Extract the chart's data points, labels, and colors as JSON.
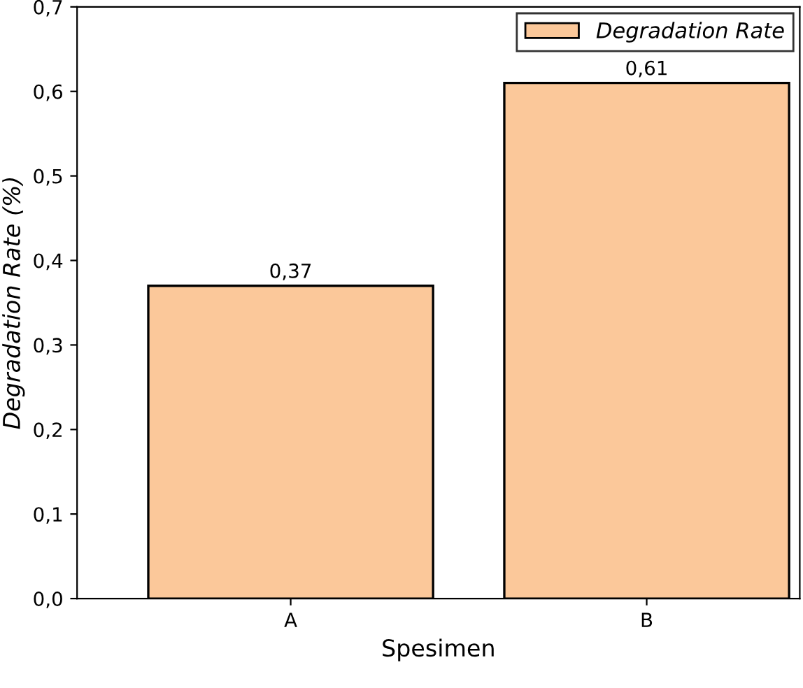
{
  "chart_data": {
    "type": "bar",
    "xlabel": "Spesimen",
    "ylabel": "Degradation Rate (%)",
    "categories": [
      "A",
      "B"
    ],
    "series": [
      {
        "name": "Degradation Rate",
        "color": "#fbc89a",
        "values": [
          0.37,
          0.61
        ],
        "value_labels": [
          "0,37",
          "0,61"
        ]
      }
    ],
    "ylim": [
      0,
      0.7
    ],
    "yticks": [
      {
        "value": 0,
        "label": "0,0"
      },
      {
        "value": 0.1,
        "label": "0,1"
      },
      {
        "value": 0.2,
        "label": "0,2"
      },
      {
        "value": 0.3,
        "label": "0,3"
      },
      {
        "value": 0.4,
        "label": "0,4"
      },
      {
        "value": 0.5,
        "label": "0,5"
      },
      {
        "value": 0.6,
        "label": "0,6"
      },
      {
        "value": 0.7,
        "label": "0,7"
      }
    ],
    "legend": "top right",
    "grid": false
  }
}
